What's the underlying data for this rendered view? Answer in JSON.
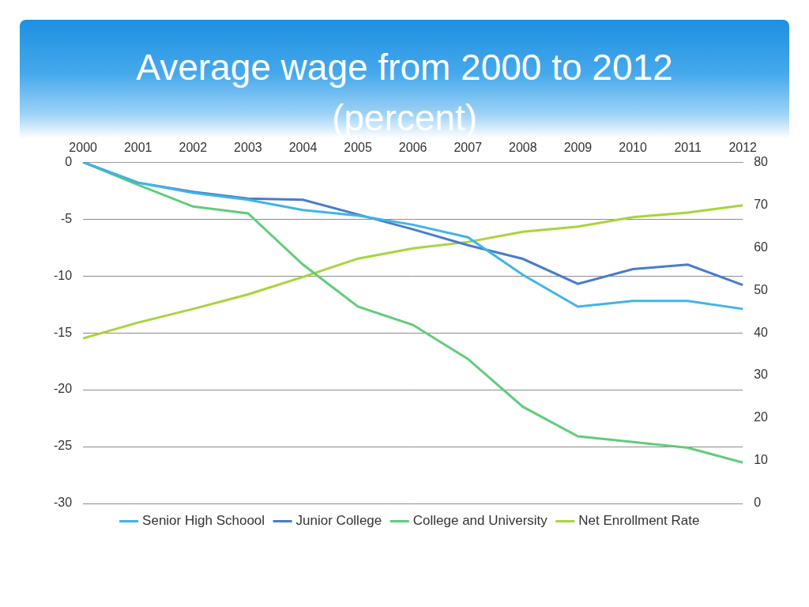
{
  "chart_data": {
    "type": "line",
    "title": "Average wage from 2000 to 2012 (percent)",
    "categories": [
      "2000",
      "2001",
      "2002",
      "2003",
      "2004",
      "2005",
      "2006",
      "2007",
      "2008",
      "2009",
      "2010",
      "2011",
      "2012"
    ],
    "series": [
      {
        "name": "Senior High Schoool",
        "color": "#41b4e8",
        "values": [
          0,
          -1.8,
          -2.7,
          -3.3,
          -4.2,
          -4.7,
          -5.5,
          -6.6,
          -9.9,
          -12.7,
          -12.2,
          -12.2,
          -12.9
        ]
      },
      {
        "name": "Junior College",
        "color": "#4a7cc8",
        "values": [
          0,
          -1.8,
          -2.6,
          -3.2,
          -3.3,
          -4.6,
          -5.9,
          -7.3,
          -8.5,
          -10.7,
          -9.4,
          -9.0,
          -10.8
        ]
      },
      {
        "name": "College and University",
        "color": "#62cc7c",
        "values": [
          0,
          -2.0,
          -3.9,
          -4.5,
          -9.0,
          -12.7,
          -14.3,
          -17.3,
          -21.5,
          -24.1,
          -24.6,
          -25.1,
          -26.4
        ]
      },
      {
        "name": "Net Enrollment Rate",
        "color": "#a8d43c",
        "axis": "y2",
        "values": [
          38.7,
          42.4,
          45.6,
          49.0,
          53.1,
          57.4,
          59.8,
          61.3,
          63.7,
          64.9,
          67.1,
          68.2,
          69.9
        ]
      }
    ],
    "ylim": [
      -30,
      0
    ],
    "yticks": [
      -30,
      -25,
      -20,
      -15,
      -10,
      -5,
      0
    ],
    "y2lim": [
      0,
      80
    ],
    "y2ticks": [
      0,
      10,
      20,
      30,
      40,
      50,
      60,
      70,
      80
    ],
    "grid": true,
    "legend": "bottom"
  }
}
